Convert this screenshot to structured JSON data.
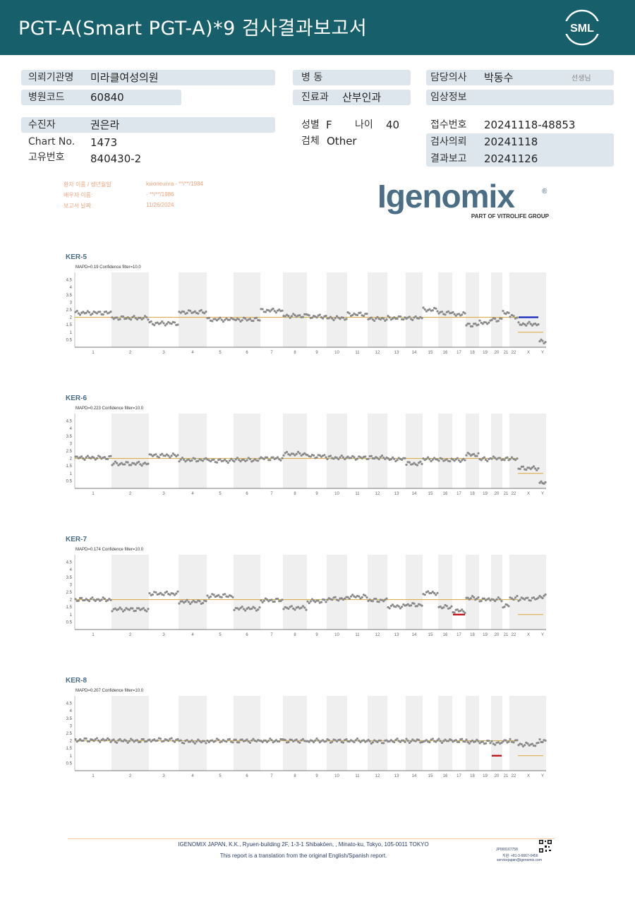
{
  "header": {
    "title": "PGT-A(Smart  PGT-A)*9 검사결과보고서",
    "logo_text": "SML"
  },
  "info": {
    "institution_label": "의뢰기관명",
    "institution": "미라클여성의원",
    "hospital_code_label": "병원코드",
    "hospital_code": "60840",
    "ward_label": "병 동",
    "ward": "",
    "dept_label": "진료과",
    "dept": "산부인과",
    "doctor_label": "담당의사",
    "doctor": "박동수",
    "doctor_suffix": "선생님",
    "clinical_label": "임상정보",
    "clinical": "",
    "patient_label": "수진자",
    "patient": "권은라",
    "chart_no_label": "Chart No.",
    "chart_no": "1473",
    "unique_label": "고유번호",
    "unique": "840430-2",
    "sex_label": "성별",
    "sex": "F",
    "age_label": "나이",
    "age": "40",
    "specimen_label": "검체",
    "specimen": "Other",
    "receipt_label": "접수번호",
    "receipt": "20241118-48853",
    "request_label": "검사의뢰",
    "request": "20241118",
    "report_label": "결과보고",
    "report": "20241126"
  },
  "report_meta": {
    "patient_label": "환자 이름 / 생년월일",
    "patient_value": "kwoneunra - **/**/1984",
    "spouse_label": "배우자 이름:",
    "spouse_value": "- **/**/1986",
    "date_label": "보고서 날짜:",
    "date_value": "11/26/2024"
  },
  "igenomix": {
    "name": "Igenomix",
    "registered": "®",
    "tagline": "PART OF VITROLIFE GROUP"
  },
  "axis": {
    "y_ticks": [
      "4.5",
      "4",
      "3.5",
      "3",
      "2.5",
      "2",
      "1.5",
      "1",
      "0.5"
    ],
    "x_labels": [
      "1",
      "2",
      "3",
      "4",
      "5",
      "6",
      "7",
      "8",
      "9",
      "10",
      "11",
      "12",
      "13",
      "14",
      "15",
      "16",
      "17",
      "18",
      "19",
      "20",
      "21",
      "22",
      "X",
      "Y"
    ]
  },
  "chart_data": [
    {
      "type": "scatter",
      "title": "KER-5",
      "subtitle": "MAPD=0.19 Confidence filter=10.0",
      "y_range": [
        0,
        5
      ],
      "reference_line": 2,
      "segments": [
        2.3,
        1.95,
        1.6,
        2.35,
        1.85,
        1.85,
        2.45,
        2.1,
        2.05,
        1.95,
        2.2,
        1.9,
        1.95,
        1.95,
        2.5,
        2.3,
        2.2,
        1.5,
        1.65,
        1.85,
        2.3,
        2.05,
        1.55,
        0.4
      ],
      "highlights": [
        {
          "chrom": "X",
          "value": 2,
          "color": "#1f2fbf"
        }
      ]
    },
    {
      "type": "scatter",
      "title": "KER-6",
      "subtitle": "MAPD=0.223 Confidence filter=10.0",
      "y_range": [
        0,
        5
      ],
      "reference_line": 2,
      "segments": [
        2.05,
        1.65,
        2.2,
        1.9,
        1.85,
        1.9,
        2.0,
        2.3,
        2.15,
        2.05,
        2.05,
        2.05,
        1.95,
        1.65,
        1.95,
        1.9,
        1.9,
        2.25,
        1.95,
        2.0,
        1.95,
        1.95,
        1.35,
        0.35
      ],
      "highlights": []
    },
    {
      "type": "scatter",
      "title": "KER-7",
      "subtitle": "MAPD=0.174 Confidence filter=10.0",
      "y_range": [
        0,
        5
      ],
      "reference_line": 2,
      "segments": [
        2.0,
        1.35,
        2.4,
        1.85,
        2.25,
        1.4,
        1.95,
        1.45,
        1.9,
        2.05,
        2.2,
        1.95,
        1.55,
        1.65,
        2.45,
        1.5,
        1.25,
        2.1,
        2.0,
        2.0,
        1.6,
        2.1,
        2.05,
        2.2
      ],
      "highlights": [
        {
          "chrom": "17",
          "value": 1,
          "color": "#c0141b"
        }
      ]
    },
    {
      "type": "scatter",
      "title": "KER-8",
      "subtitle": "MAPD=0.207 Confidence filter=10.0",
      "y_range": [
        0,
        5
      ],
      "reference_line": 2,
      "segments": [
        2.05,
        2.0,
        2.05,
        1.95,
        2.0,
        2.0,
        2.0,
        2.0,
        2.0,
        2.0,
        2.0,
        1.95,
        2.0,
        2.0,
        2.0,
        2.0,
        2.0,
        1.95,
        1.9,
        1.85,
        2.0,
        2.0,
        1.75,
        2.0
      ],
      "highlights": [
        {
          "chrom": "20",
          "value": 1,
          "color": "#c0141b"
        }
      ]
    }
  ],
  "footer": {
    "address": "IGENOMIX JAPAN, K.K., Ryuen-building 2F, 1-3-1 Shibakōen, , Minato-ku, Tokyo, 105-0011 TOKYO",
    "note": "This report is a translation from the original English/Spanish report.",
    "code": "JP000167758",
    "phone": "지원: +81-3-6667-0456",
    "email": "servicejapan@igenomix.com"
  }
}
